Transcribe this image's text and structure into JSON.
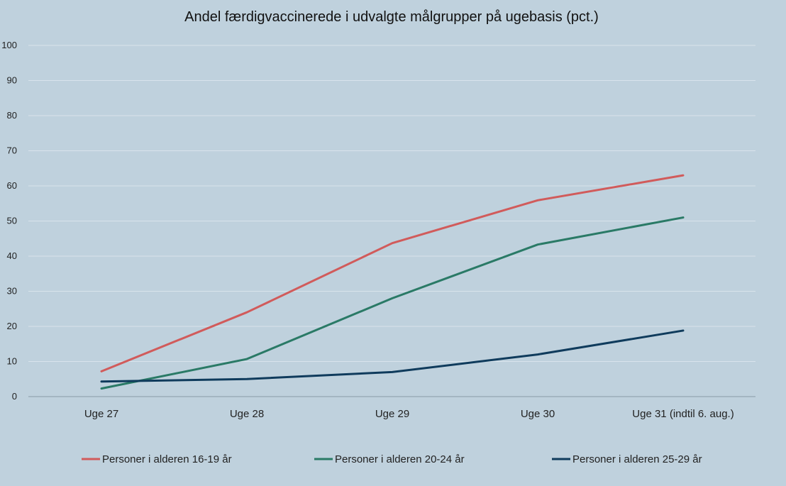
{
  "chart_data": {
    "type": "line",
    "title": "Andel færdigvaccinerede i udvalgte målgrupper på ugebasis (pct.)",
    "categories": [
      "Uge 27",
      "Uge 28",
      "Uge 29",
      "Uge 30",
      "Uge 31 (indtil 6. aug.)"
    ],
    "ylim": [
      0,
      100
    ],
    "yticks": [
      0,
      10,
      20,
      30,
      40,
      50,
      60,
      70,
      80,
      90,
      100
    ],
    "grid": true,
    "legend_position": "bottom",
    "series": [
      {
        "name": "Personer i alderen 16-19 år",
        "color": "#d15b5b",
        "values": [
          7.2,
          24,
          43.7,
          55.9,
          63
        ]
      },
      {
        "name": "Personer i alderen 20-24 år",
        "color": "#2a7a66",
        "values": [
          2.3,
          10.7,
          28,
          43.3,
          51
        ]
      },
      {
        "name": "Personer i alderen 25-29 år",
        "color": "#0f3b5c",
        "values": [
          4.3,
          5,
          7,
          12,
          18.8
        ]
      }
    ]
  }
}
